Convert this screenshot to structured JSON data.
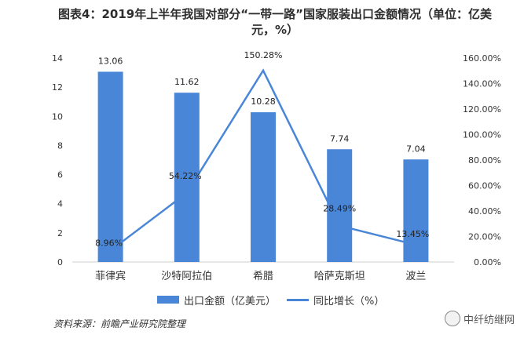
{
  "title": "图表4：2019年上半年我国对部分“一带一路”国家服装出口金额情况（单位：亿美元，%）",
  "legend": {
    "bar_label": "出口金额（亿美元）",
    "line_label": "同比增长（%）"
  },
  "source": "资料来源：前瞻产业研究院整理",
  "watermark": "中纤纺继网",
  "colors": {
    "bar": "#4a86d8",
    "line": "#4a86d8"
  },
  "chart_data": {
    "type": "bar",
    "title": "图表4：2019年上半年我国对部分“一带一路”国家服装出口金额情况（单位：亿美元，%）",
    "categories": [
      "菲律宾",
      "沙特阿拉伯",
      "希腊",
      "哈萨克斯坦",
      "波兰"
    ],
    "series": [
      {
        "name": "出口金额（亿美元）",
        "type": "bar",
        "axis": "left",
        "values": [
          13.06,
          11.62,
          10.28,
          7.74,
          7.04
        ],
        "labels": [
          "13.06",
          "11.62",
          "10.28",
          "7.74",
          "7.04"
        ]
      },
      {
        "name": "同比增长（%）",
        "type": "line",
        "axis": "right",
        "values": [
          8.96,
          54.22,
          150.28,
          28.49,
          13.45
        ],
        "labels": [
          "8.96%",
          "54.22%",
          "150.28%",
          "28.49%",
          "13.45%"
        ]
      }
    ],
    "y_left": {
      "ylim": [
        0,
        14
      ],
      "ticks": [
        "0",
        "2",
        "4",
        "6",
        "8",
        "10",
        "12",
        "14"
      ]
    },
    "y_right": {
      "ylim": [
        0,
        160
      ],
      "ticks": [
        "0.00%",
        "20.00%",
        "40.00%",
        "60.00%",
        "80.00%",
        "100.00%",
        "120.00%",
        "140.00%",
        "160.00%"
      ]
    },
    "grid": false,
    "legend_position": "bottom"
  }
}
